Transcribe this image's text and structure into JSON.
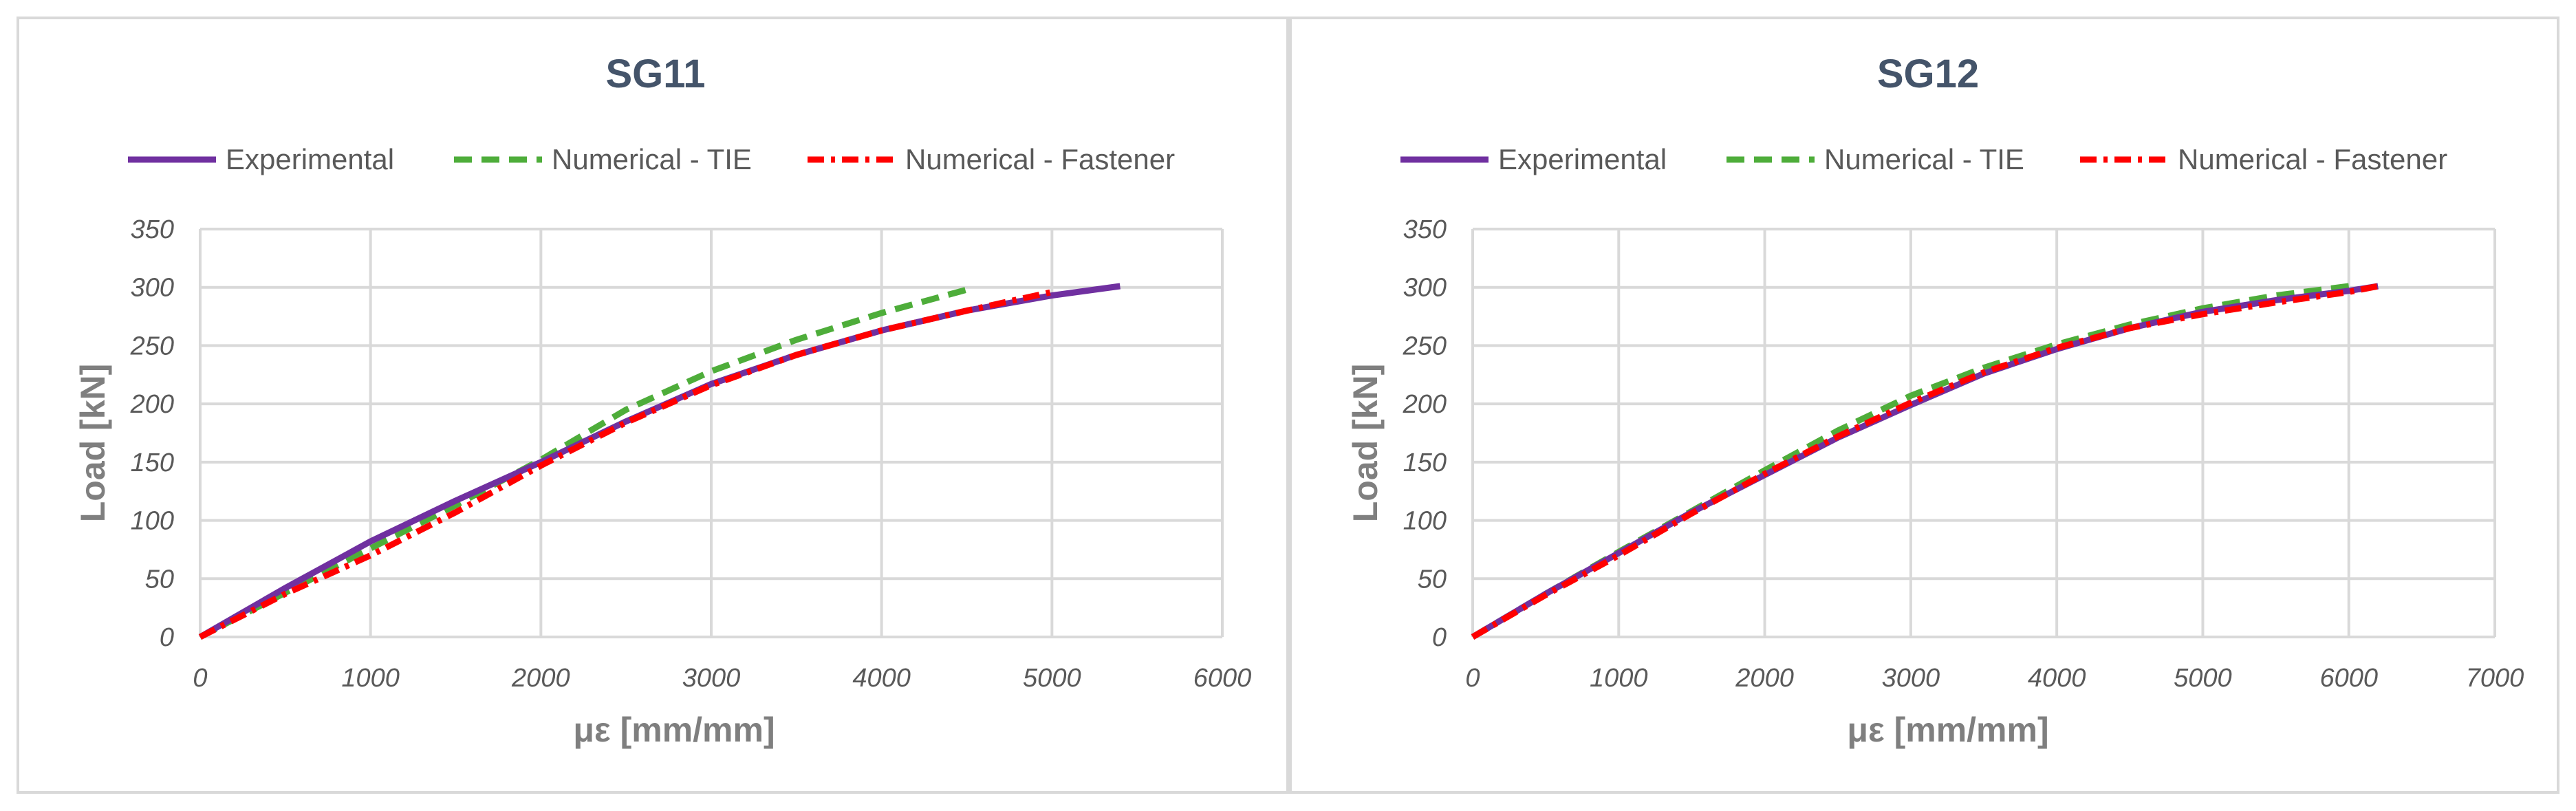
{
  "charts": [
    {
      "id": "sg11",
      "title": "SG11",
      "xlabel": "με [mm/mm]",
      "ylabel": "Load [kN]",
      "xlim": [
        0,
        6000
      ],
      "ylim": [
        0,
        350
      ],
      "xticks": [
        "0",
        "1000",
        "2000",
        "3000",
        "4000",
        "5000",
        "6000"
      ],
      "yticks": [
        "0",
        "50",
        "100",
        "150",
        "200",
        "250",
        "300",
        "350"
      ],
      "legend": [
        "Experimental",
        "Numerical - TIE",
        "Numerical - Fastener"
      ]
    },
    {
      "id": "sg12",
      "title": "SG12",
      "xlabel": "με [mm/mm]",
      "ylabel": "Load [kN]",
      "xlim": [
        0,
        7000
      ],
      "ylim": [
        0,
        350
      ],
      "xticks": [
        "0",
        "1000",
        "2000",
        "3000",
        "4000",
        "5000",
        "6000",
        "7000"
      ],
      "yticks": [
        "0",
        "50",
        "100",
        "150",
        "200",
        "250",
        "300",
        "350"
      ],
      "legend": [
        "Experimental",
        "Numerical - TIE",
        "Numerical - Fastener"
      ]
    }
  ],
  "chart_data": [
    {
      "type": "line",
      "title": "SG11",
      "xlabel": "με [mm/mm]",
      "ylabel": "Load [kN]",
      "xlim": [
        0,
        6000
      ],
      "ylim": [
        0,
        350
      ],
      "grid": true,
      "legend_position": "top",
      "series": [
        {
          "name": "Experimental",
          "color": "#7030a0",
          "style": "solid",
          "x": [
            0,
            500,
            1000,
            1500,
            2000,
            2500,
            3000,
            3500,
            4000,
            4500,
            5000,
            5400
          ],
          "y": [
            0,
            42,
            82,
            117,
            150,
            185,
            217,
            242,
            263,
            280,
            293,
            301
          ]
        },
        {
          "name": "Numerical - TIE",
          "color": "#4ead3a",
          "style": "dashed",
          "x": [
            0,
            500,
            1000,
            1500,
            2000,
            2500,
            3000,
            3500,
            4000,
            4500
          ],
          "y": [
            0,
            38,
            76,
            113,
            152,
            195,
            228,
            255,
            278,
            298
          ]
        },
        {
          "name": "Numerical - Fastener",
          "color": "#ff0000",
          "style": "dashdot",
          "x": [
            0,
            500,
            1000,
            1500,
            2000,
            2500,
            3000,
            3500,
            4000,
            4500,
            5000
          ],
          "y": [
            0,
            37,
            70,
            107,
            147,
            184,
            216,
            242,
            263,
            280,
            296
          ]
        }
      ]
    },
    {
      "type": "line",
      "title": "SG12",
      "xlabel": "με [mm/mm]",
      "ylabel": "Load [kN]",
      "xlim": [
        0,
        7000
      ],
      "ylim": [
        0,
        350
      ],
      "grid": true,
      "legend_position": "top",
      "series": [
        {
          "name": "Experimental",
          "color": "#7030a0",
          "style": "solid",
          "x": [
            0,
            500,
            1000,
            1500,
            2000,
            2500,
            3000,
            3500,
            4000,
            4500,
            5000,
            5500,
            6000,
            6200
          ],
          "y": [
            0,
            37,
            72,
            107,
            139,
            171,
            199,
            226,
            247,
            265,
            279,
            289,
            297,
            301
          ]
        },
        {
          "name": "Numerical - TIE",
          "color": "#4ead3a",
          "style": "dashed",
          "x": [
            0,
            500,
            1000,
            1500,
            2000,
            2500,
            3000,
            3500,
            4000,
            4500,
            5000,
            5500,
            6000
          ],
          "y": [
            0,
            37,
            73,
            108,
            143,
            177,
            207,
            231,
            251,
            268,
            282,
            293,
            301
          ]
        },
        {
          "name": "Numerical - Fastener",
          "color": "#ff0000",
          "style": "dashdot",
          "x": [
            0,
            500,
            1000,
            1500,
            2000,
            2500,
            3000,
            3500,
            4000,
            4500,
            5000,
            5500,
            6000,
            6200
          ],
          "y": [
            0,
            36,
            70,
            106,
            140,
            172,
            201,
            227,
            248,
            265,
            277,
            287,
            296,
            301
          ]
        }
      ]
    }
  ]
}
